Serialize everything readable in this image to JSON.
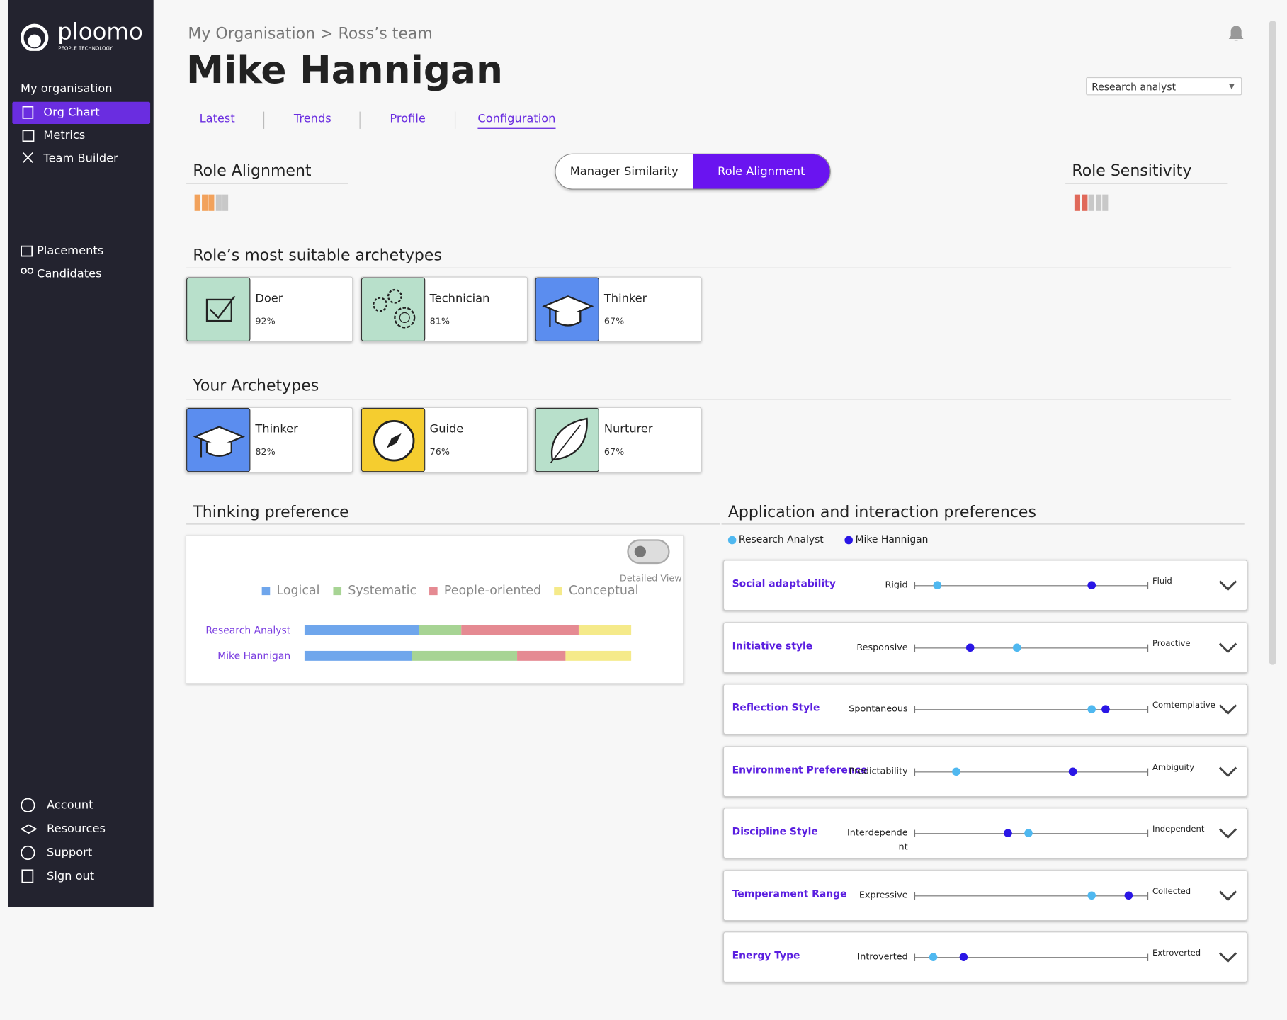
{
  "sidebar": {
    "logo": "ploomo",
    "logo_sub": "PEOPLE TECHNOLOGY",
    "section": "My organisation",
    "nav": [
      "Org Chart",
      "Metrics",
      "Team Builder"
    ],
    "nav2": [
      "Placements",
      "Candidates"
    ],
    "footer": [
      "Account",
      "Resources",
      "Support",
      "Sign out"
    ]
  },
  "header": {
    "breadcrumb": "My Organisation > Ross’s team",
    "title": "Mike Hannigan",
    "role_select": "Research analyst",
    "tabs": [
      "Latest",
      "Trends",
      "Profile",
      "Configuration"
    ]
  },
  "alignment": {
    "left_title": "Role Alignment",
    "left_level": 3,
    "left_color": "#f2a25c",
    "right_title": "Role Sensitivity",
    "right_level": 2,
    "right_color": "#e0695a",
    "max": 5,
    "toggle": [
      "Manager Similarity",
      "Role Alignment"
    ]
  },
  "role_archetypes": {
    "title": "Role’s most suitable archetypes",
    "cards": [
      {
        "name": "Doer",
        "score": "92%",
        "color": "#b8e0cb"
      },
      {
        "name": "Technician",
        "score": "81%",
        "color": "#b8e0cb"
      },
      {
        "name": "Thinker",
        "score": "67%",
        "color": "#5b8def"
      }
    ]
  },
  "your_archetypes": {
    "title": "Your Archetypes",
    "cards": [
      {
        "name": "Thinker",
        "score": "82%",
        "color": "#5b8def"
      },
      {
        "name": "Guide",
        "score": "76%",
        "color": "#f5cd2f"
      },
      {
        "name": "Nurturer",
        "score": "67%",
        "color": "#b8e0cb"
      }
    ]
  },
  "thinking": {
    "title": "Thinking preference",
    "toggle_label": "Detailed View",
    "legend": [
      "Logical",
      "Systematic",
      "People-oriented",
      "Conceptual"
    ],
    "colors": [
      "#6fa6ec",
      "#a7d494",
      "#e58a92",
      "#f5ea8a"
    ],
    "rows": [
      {
        "name": "Research Analyst",
        "values": [
          35,
          13,
          36,
          16
        ]
      },
      {
        "name": "Mike Hannigan",
        "values": [
          33,
          32,
          15,
          20
        ]
      }
    ]
  },
  "preferences": {
    "title": "Application and interaction preferences",
    "legend": [
      {
        "name": "Research Analyst",
        "color": "#4fb8f0"
      },
      {
        "name": "Mike Hannigan",
        "color": "#2a16e6"
      }
    ],
    "rows": [
      {
        "label": "Social adaptability",
        "left": "Rigid",
        "right": "Fluid",
        "values": [
          10,
          76
        ]
      },
      {
        "label": "Initiative style",
        "left": "Responsive",
        "right": "Proactive",
        "values": [
          44,
          24
        ]
      },
      {
        "label": "Reflection Style",
        "left": "Spontaneous",
        "right": "Comtemplative",
        "values": [
          76,
          82
        ]
      },
      {
        "label": "Environment Preference",
        "left": "Predictability",
        "right": "Ambiguity",
        "values": [
          18,
          68
        ]
      },
      {
        "label": "Discipline Style",
        "left": "Interdependent",
        "right": "Independent",
        "values": [
          49,
          40
        ]
      },
      {
        "label": "Temperament Range",
        "left": "Expressive",
        "right": "Collected",
        "values": [
          76,
          92
        ]
      },
      {
        "label": "Energy Type",
        "left": "Introverted",
        "right": "Extroverted",
        "values": [
          8,
          21
        ]
      }
    ]
  }
}
